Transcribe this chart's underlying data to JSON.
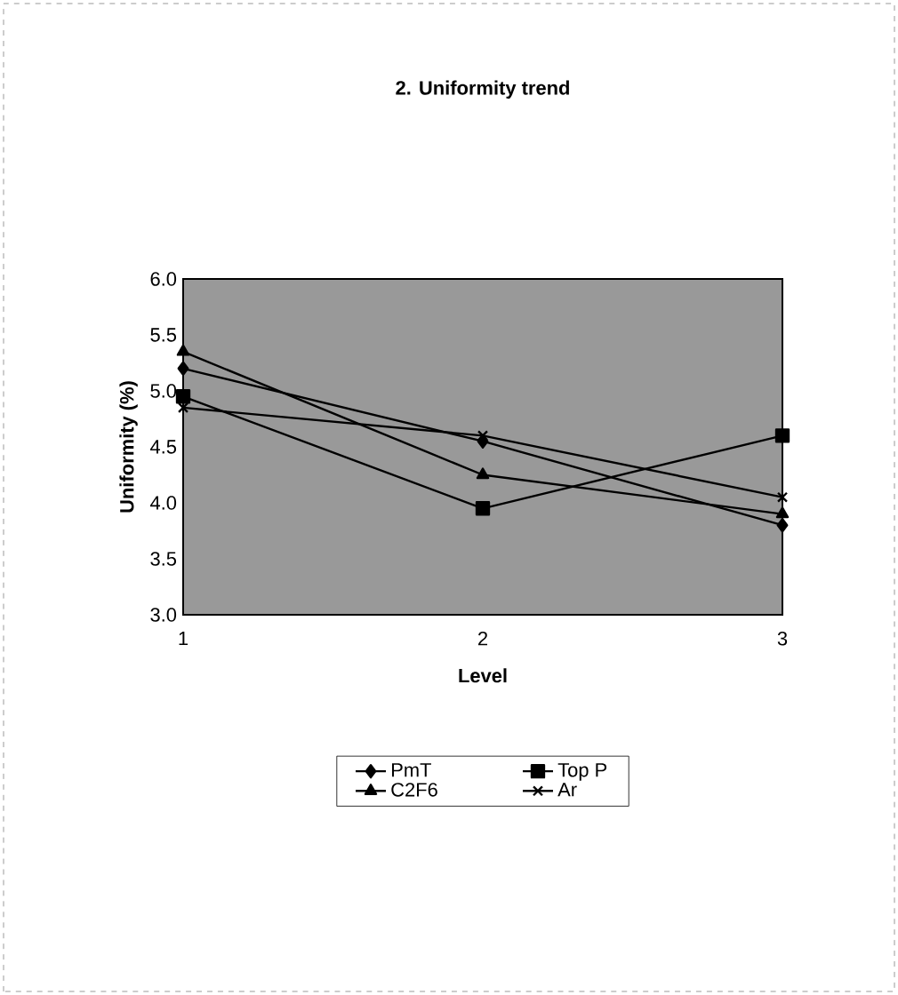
{
  "chart_data": {
    "type": "line",
    "title": "2. Uniformity trend",
    "xlabel": "Level",
    "ylabel": "Uniformity (%)",
    "x": [
      1,
      2,
      3
    ],
    "xlim": [
      1,
      3
    ],
    "xticks": [
      1,
      2,
      3
    ],
    "ylim": [
      3.0,
      6.0
    ],
    "yticks": [
      {
        "value": 3.0,
        "label": "3.0"
      },
      {
        "value": 3.5,
        "label": "3.5"
      },
      {
        "value": 4.0,
        "label": "4.0"
      },
      {
        "value": 4.5,
        "label": "4.5"
      },
      {
        "value": 5.0,
        "label": "5.0"
      },
      {
        "value": 5.5,
        "label": "5.5"
      },
      {
        "value": 6.0,
        "label": "6.0"
      }
    ],
    "series": [
      {
        "name": "PmT",
        "color": "#000000",
        "marker": "diamond",
        "values": [
          5.2,
          4.55,
          3.8
        ]
      },
      {
        "name": "Top P",
        "color": "#000000",
        "marker": "square",
        "values": [
          4.95,
          3.95,
          4.6
        ]
      },
      {
        "name": "C2F6",
        "color": "#000000",
        "marker": "triangle",
        "values": [
          5.35,
          4.25,
          3.9
        ]
      },
      {
        "name": "Ar",
        "color": "#000000",
        "marker": "cross",
        "values": [
          4.85,
          4.6,
          4.05
        ]
      }
    ],
    "grid": false,
    "legend": "bottom",
    "line_style": "solid"
  }
}
